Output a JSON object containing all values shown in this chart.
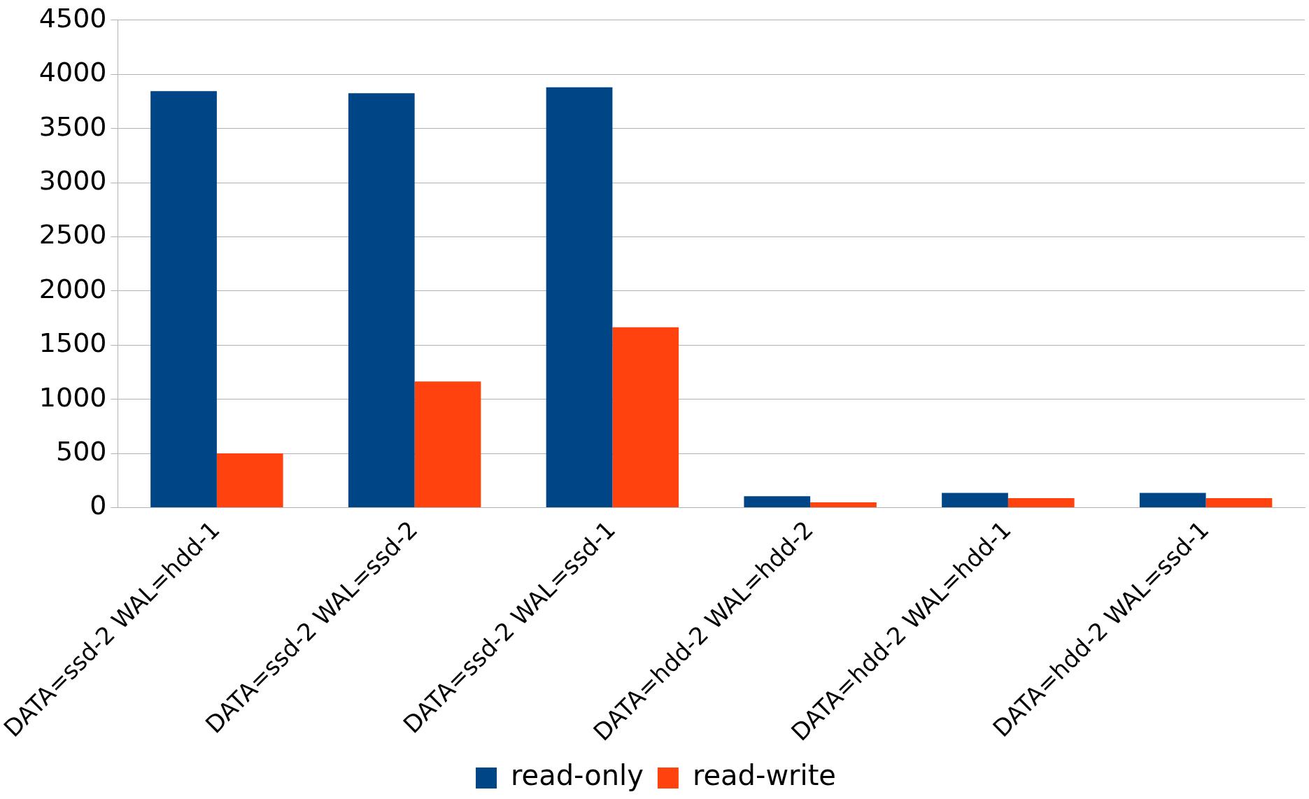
{
  "chart_data": {
    "type": "bar",
    "categories": [
      "DATA=ssd-2 WAL=hdd-1",
      "DATA=ssd-2 WAL=ssd-2",
      "DATA=ssd-2 WAL=ssd-1",
      "DATA=hdd-2 WAL=hdd-2",
      "DATA=hdd-2 WAL=hdd-1",
      "DATA=hdd-2 WAL=ssd-1"
    ],
    "series": [
      {
        "name": "read-only",
        "color": "#004586",
        "values": [
          3845,
          3825,
          3880,
          105,
          135,
          135
        ]
      },
      {
        "name": "read-write",
        "color": "#ff420e",
        "values": [
          500,
          1165,
          1665,
          48,
          87,
          87
        ]
      }
    ],
    "ylim": [
      0,
      4500
    ],
    "yticks": [
      0,
      500,
      1000,
      1500,
      2000,
      2500,
      3000,
      3500,
      4000,
      4500
    ],
    "grid": "y",
    "legend": "bottom"
  }
}
